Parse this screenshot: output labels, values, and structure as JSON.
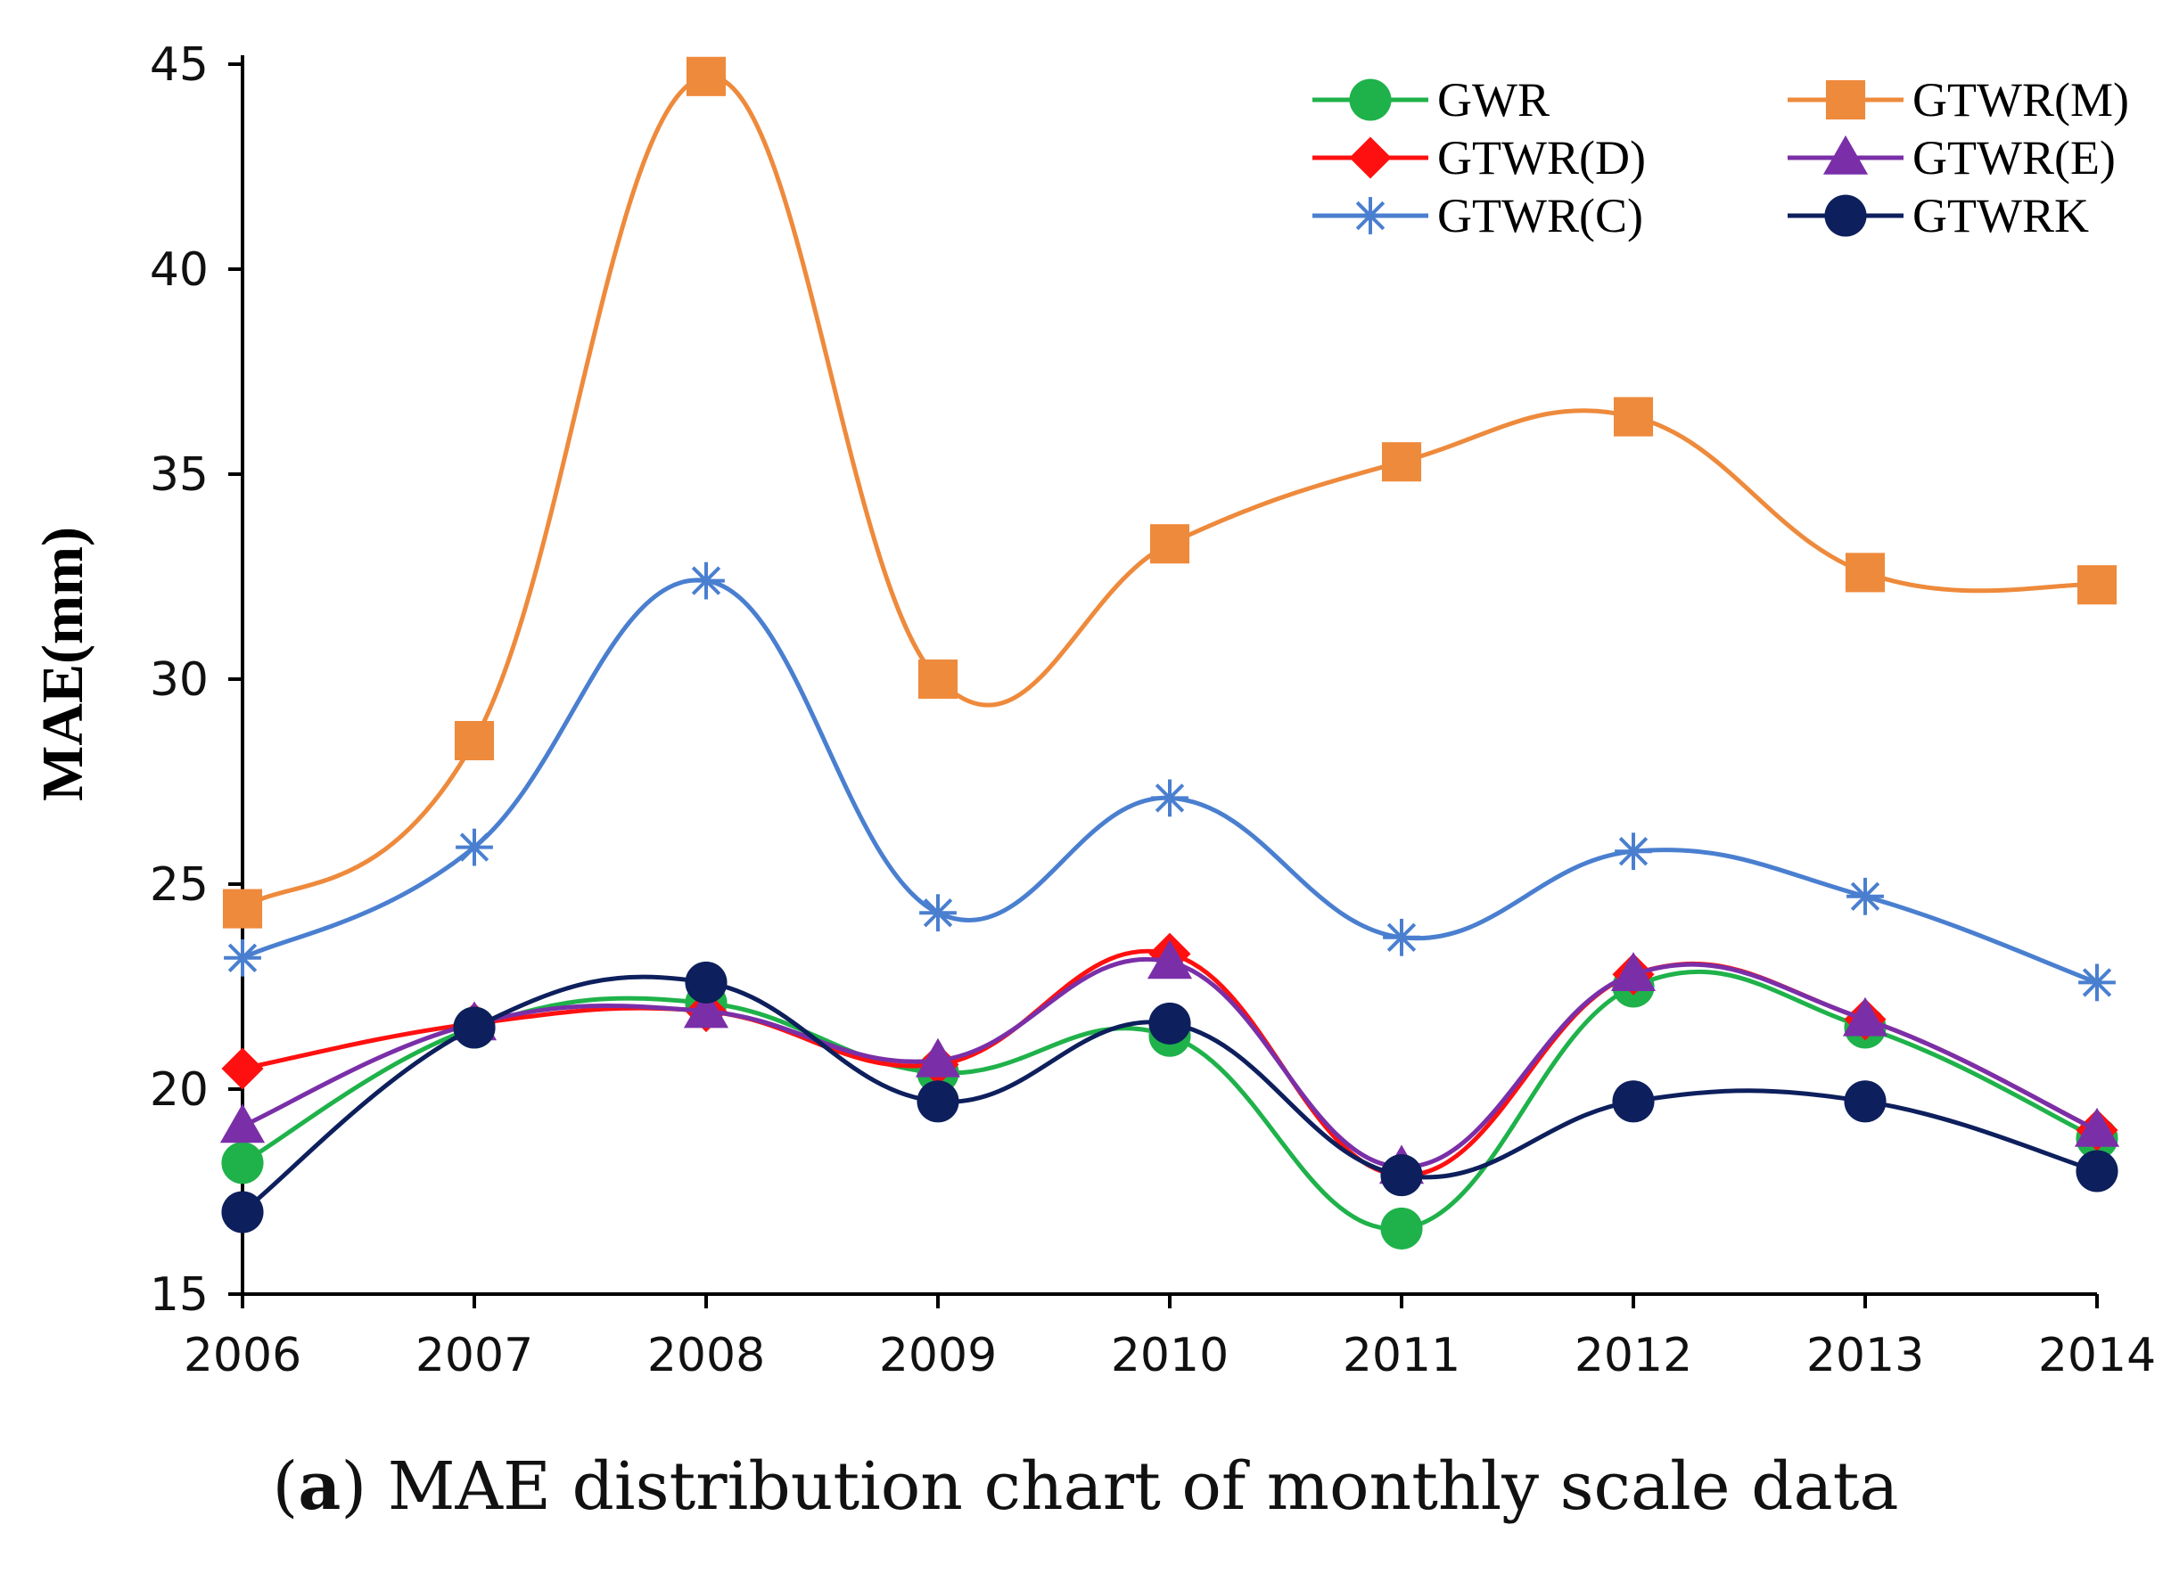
{
  "chart_data": {
    "type": "line",
    "title": "",
    "xlabel": "",
    "ylabel": "MAE(mm)",
    "categories": [
      "2006",
      "2007",
      "2008",
      "2009",
      "2010",
      "2011",
      "2012",
      "2013",
      "2014"
    ],
    "ylim": [
      15,
      45
    ],
    "yticks": [
      15,
      20,
      25,
      30,
      35,
      40,
      45
    ],
    "grid": false,
    "legend_position": "top-right",
    "series": [
      {
        "name": "GWR",
        "color": "#1fb24a",
        "marker": "circle",
        "values": [
          18.2,
          21.5,
          22.1,
          20.4,
          21.3,
          16.6,
          22.5,
          21.5,
          18.8
        ]
      },
      {
        "name": "GTWR(M)",
        "color": "#ee8a3c",
        "marker": "square",
        "values": [
          24.4,
          28.5,
          44.7,
          30.0,
          33.3,
          35.3,
          36.4,
          32.6,
          32.3
        ]
      },
      {
        "name": "GTWR(D)",
        "color": "#ff1010",
        "marker": "diamond",
        "values": [
          20.5,
          21.6,
          21.9,
          20.6,
          23.3,
          17.9,
          22.8,
          21.7,
          19.0
        ]
      },
      {
        "name": "GTWR(E)",
        "color": "#7a2fa8",
        "marker": "triangle",
        "values": [
          19.1,
          21.6,
          21.9,
          20.7,
          23.1,
          18.1,
          22.8,
          21.7,
          19.0
        ]
      },
      {
        "name": "GTWR(C)",
        "color": "#4a7fd0",
        "marker": "asterisk",
        "values": [
          23.2,
          25.9,
          32.4,
          24.3,
          27.1,
          23.7,
          25.8,
          24.7,
          22.6
        ]
      },
      {
        "name": "GTWRK",
        "color": "#0d1f5c",
        "marker": "circle",
        "values": [
          17.0,
          21.5,
          22.6,
          19.7,
          21.6,
          17.9,
          19.7,
          19.7,
          18.0
        ]
      }
    ]
  },
  "caption": {
    "label": "a",
    "text": "MAE distribution chart of monthly scale data"
  }
}
